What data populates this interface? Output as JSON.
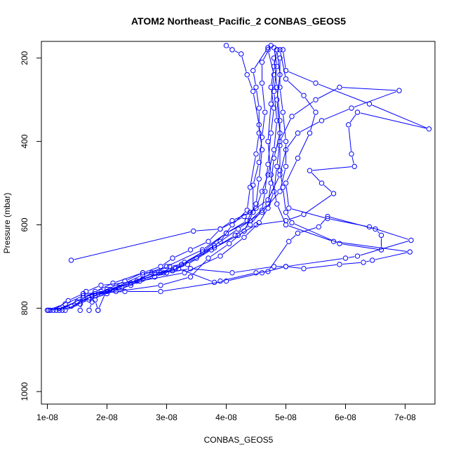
{
  "chart_data": {
    "type": "line",
    "title": "ATOM2 Northeast_Pacific_2 CONBAS_GEOS5",
    "xlabel": "CONBAS_GEOS5",
    "ylabel": "Pressure (mbar)",
    "xlim": [
      9e-09,
      7.5e-08
    ],
    "ylim": [
      1030,
      160
    ],
    "y_reversed": true,
    "x_ticks": [
      {
        "value": 1e-08,
        "label": "1e-08"
      },
      {
        "value": 2e-08,
        "label": "2e-08"
      },
      {
        "value": 3e-08,
        "label": "3e-08"
      },
      {
        "value": 4e-08,
        "label": "4e-08"
      },
      {
        "value": 5e-08,
        "label": "5e-08"
      },
      {
        "value": 6e-08,
        "label": "6e-08"
      },
      {
        "value": 7e-08,
        "label": "7e-08"
      }
    ],
    "y_ticks": [
      {
        "value": 200,
        "label": "200"
      },
      {
        "value": 400,
        "label": "400"
      },
      {
        "value": 600,
        "label": "600"
      },
      {
        "value": 800,
        "label": "800"
      },
      {
        "value": 1000,
        "label": "1000"
      }
    ],
    "grid": false,
    "color": "#0000ff",
    "series": [
      {
        "points": [
          [
            1.4e-08,
            685
          ],
          [
            3.45e-08,
            615
          ],
          [
            3.9e-08,
            610
          ],
          [
            4.3e-08,
            580
          ],
          [
            4.5e-08,
            560
          ],
          [
            4.6e-08,
            520
          ],
          [
            4.7e-08,
            480
          ],
          [
            4.8e-08,
            420
          ],
          [
            4.85e-08,
            350
          ],
          [
            4.8e-08,
            280
          ],
          [
            4.85e-08,
            220
          ],
          [
            4.8e-08,
            175
          ]
        ]
      },
      {
        "points": [
          [
            1e-08,
            805
          ],
          [
            1.3e-08,
            790
          ],
          [
            1.6e-08,
            770
          ],
          [
            2e-08,
            760
          ],
          [
            2.6e-08,
            720
          ],
          [
            3e-08,
            700
          ],
          [
            3.6e-08,
            660
          ],
          [
            4e-08,
            620
          ],
          [
            4.4e-08,
            590
          ],
          [
            4.7e-08,
            550
          ],
          [
            4.75e-08,
            500
          ],
          [
            4.8e-08,
            440
          ],
          [
            4.9e-08,
            380
          ],
          [
            4.85e-08,
            300
          ],
          [
            4.9e-08,
            240
          ],
          [
            4.85e-08,
            180
          ]
        ]
      },
      {
        "points": [
          [
            1.02e-08,
            805
          ],
          [
            1.2e-08,
            800
          ],
          [
            1.5e-08,
            785
          ],
          [
            1.8e-08,
            770
          ],
          [
            2.4e-08,
            740
          ],
          [
            2.9e-08,
            715
          ],
          [
            3.3e-08,
            690
          ],
          [
            3.8e-08,
            650
          ],
          [
            4.2e-08,
            610
          ],
          [
            4.6e-08,
            570
          ],
          [
            4.9e-08,
            520
          ],
          [
            5e-08,
            460
          ],
          [
            5e-08,
            400
          ],
          [
            4.95e-08,
            330
          ],
          [
            4.9e-08,
            270
          ],
          [
            4.9e-08,
            200
          ]
        ]
      },
      {
        "points": [
          [
            1.05e-08,
            805
          ],
          [
            1.4e-08,
            795
          ],
          [
            1.7e-08,
            775
          ],
          [
            2.2e-08,
            750
          ],
          [
            2.8e-08,
            715
          ],
          [
            3.1e-08,
            710
          ],
          [
            3.5e-08,
            680
          ],
          [
            3.9e-08,
            640
          ],
          [
            4.1e-08,
            600
          ],
          [
            4.35e-08,
            565
          ],
          [
            4.4e-08,
            510
          ],
          [
            4.5e-08,
            430
          ],
          [
            4.55e-08,
            380
          ],
          [
            4.55e-08,
            320
          ],
          [
            4.5e-08,
            270
          ],
          [
            4.45e-08,
            230
          ],
          [
            4.7e-08,
            175
          ]
        ]
      },
      {
        "points": [
          [
            1.1e-08,
            805
          ],
          [
            1.35e-08,
            782
          ],
          [
            1.6e-08,
            765
          ],
          [
            2.3e-08,
            760
          ],
          [
            2.9e-08,
            760
          ],
          [
            4e-08,
            735
          ],
          [
            4.6e-08,
            715
          ],
          [
            5e-08,
            700
          ],
          [
            5.3e-08,
            705
          ],
          [
            5.9e-08,
            695
          ],
          [
            6.3e-08,
            690
          ],
          [
            6.45e-08,
            685
          ],
          [
            7.08e-08,
            665
          ],
          [
            5.8e-08,
            640
          ],
          [
            5e-08,
            600
          ],
          [
            4.85e-08,
            550
          ],
          [
            4.75e-08,
            480
          ],
          [
            4.7e-08,
            400
          ],
          [
            4.75e-08,
            310
          ],
          [
            4.8e-08,
            240
          ],
          [
            4.7e-08,
            180
          ]
        ]
      },
      {
        "points": [
          [
            1.15e-08,
            805
          ],
          [
            1.5e-08,
            785
          ],
          [
            1.8e-08,
            760
          ],
          [
            2.1e-08,
            740
          ],
          [
            2.6e-08,
            715
          ],
          [
            3e-08,
            715
          ],
          [
            3.4e-08,
            705
          ],
          [
            4.1e-08,
            715
          ],
          [
            4.8e-08,
            700
          ],
          [
            5e-08,
            700
          ],
          [
            6e-08,
            680
          ],
          [
            6.2e-08,
            675
          ],
          [
            7.1e-08,
            637
          ],
          [
            6.4e-08,
            605
          ],
          [
            5.7e-08,
            585
          ],
          [
            5.05e-08,
            560
          ],
          [
            5e-08,
            500
          ],
          [
            5.2e-08,
            440
          ],
          [
            5.4e-08,
            380
          ],
          [
            5.5e-08,
            330
          ],
          [
            5.3e-08,
            290
          ],
          [
            5e-08,
            250
          ],
          [
            4.9e-08,
            180
          ]
        ]
      },
      {
        "points": [
          [
            1.2e-08,
            805
          ],
          [
            1.6e-08,
            775
          ],
          [
            1.9e-08,
            760
          ],
          [
            2.5e-08,
            735
          ],
          [
            2.95e-08,
            715
          ],
          [
            3.2e-08,
            705
          ],
          [
            3.8e-08,
            738
          ],
          [
            3.9e-08,
            735
          ],
          [
            4.5e-08,
            715
          ],
          [
            4.7e-08,
            712
          ],
          [
            5.05e-08,
            640
          ],
          [
            5.2e-08,
            620
          ],
          [
            5.55e-08,
            605
          ],
          [
            5.7e-08,
            580
          ],
          [
            6.5e-08,
            610
          ],
          [
            6.6e-08,
            625
          ],
          [
            6.6e-08,
            660
          ],
          [
            5.9e-08,
            645
          ],
          [
            5.1e-08,
            595
          ],
          [
            5e-08,
            570
          ],
          [
            4.95e-08,
            510
          ],
          [
            4.9e-08,
            470
          ],
          [
            4.9e-08,
            410
          ],
          [
            4.9e-08,
            350
          ],
          [
            4.85e-08,
            270
          ],
          [
            4.8e-08,
            200
          ]
        ]
      },
      {
        "points": [
          [
            1.25e-08,
            805
          ],
          [
            1.7e-08,
            780
          ],
          [
            2e-08,
            765
          ],
          [
            2.4e-08,
            745
          ],
          [
            2.75e-08,
            715
          ],
          [
            3.05e-08,
            700
          ],
          [
            3.25e-08,
            695
          ],
          [
            3.8e-08,
            655
          ],
          [
            4.2e-08,
            625
          ],
          [
            4.5e-08,
            600
          ],
          [
            5e-08,
            590
          ],
          [
            5.3e-08,
            575
          ],
          [
            5.8e-08,
            525
          ],
          [
            5.6e-08,
            500
          ],
          [
            5.4e-08,
            470
          ],
          [
            6.15e-08,
            460
          ],
          [
            6.1e-08,
            430
          ],
          [
            6.05e-08,
            360
          ],
          [
            6.2e-08,
            330
          ],
          [
            7.4e-08,
            370
          ],
          [
            6.4e-08,
            310
          ],
          [
            5.5e-08,
            260
          ],
          [
            5e-08,
            230
          ],
          [
            4.95e-08,
            180
          ]
        ]
      },
      {
        "points": [
          [
            1.3e-08,
            805
          ],
          [
            1.55e-08,
            790
          ],
          [
            1.75e-08,
            770
          ],
          [
            2.15e-08,
            760
          ],
          [
            2.9e-08,
            745
          ],
          [
            3.4e-08,
            725
          ],
          [
            3.7e-08,
            680
          ],
          [
            4.05e-08,
            645
          ],
          [
            4.3e-08,
            615
          ],
          [
            4.45e-08,
            570
          ],
          [
            4.45e-08,
            505
          ],
          [
            4.55e-08,
            450
          ],
          [
            4.6e-08,
            390
          ],
          [
            4.65e-08,
            330
          ],
          [
            4.6e-08,
            260
          ],
          [
            4.6e-08,
            210
          ],
          [
            4.75e-08,
            170
          ]
        ]
      },
      {
        "points": [
          [
            1.55e-08,
            805
          ],
          [
            1.6e-08,
            775
          ],
          [
            1.65e-08,
            760
          ],
          [
            1.9e-08,
            745
          ],
          [
            2.55e-08,
            735
          ],
          [
            3.3e-08,
            715
          ],
          [
            3.9e-08,
            675
          ],
          [
            4.3e-08,
            630
          ],
          [
            4.55e-08,
            595
          ],
          [
            4.7e-08,
            560
          ],
          [
            4.8e-08,
            520
          ],
          [
            4.85e-08,
            460
          ],
          [
            4.9e-08,
            400
          ],
          [
            5.1e-08,
            340
          ],
          [
            5.5e-08,
            300
          ],
          [
            5.9e-08,
            270
          ],
          [
            6.9e-08,
            278
          ],
          [
            6.1e-08,
            320
          ],
          [
            5.6e-08,
            350
          ],
          [
            5.2e-08,
            380
          ],
          [
            5e-08,
            420
          ],
          [
            4.9e-08,
            480
          ],
          [
            4.7e-08,
            540
          ],
          [
            4.4e-08,
            570
          ],
          [
            4.1e-08,
            590
          ],
          [
            3.9e-08,
            610
          ],
          [
            3.7e-08,
            640
          ],
          [
            3.4e-08,
            660
          ],
          [
            3.1e-08,
            680
          ],
          [
            2.9e-08,
            700
          ],
          [
            2.6e-08,
            715
          ],
          [
            2.3e-08,
            735
          ],
          [
            2e-08,
            755
          ],
          [
            1.85e-08,
            805
          ]
        ]
      },
      {
        "points": [
          [
            1.7e-08,
            805
          ],
          [
            1.75e-08,
            785
          ],
          [
            1.8e-08,
            765
          ],
          [
            2.05e-08,
            755
          ],
          [
            2.6e-08,
            730
          ],
          [
            3.15e-08,
            705
          ],
          [
            3.6e-08,
            665
          ],
          [
            4e-08,
            620
          ],
          [
            4.35e-08,
            590
          ],
          [
            4.5e-08,
            550
          ],
          [
            4.55e-08,
            490
          ],
          [
            4.6e-08,
            420
          ],
          [
            4.55e-08,
            360
          ],
          [
            4.45e-08,
            280
          ],
          [
            4.35e-08,
            240
          ],
          [
            4.25e-08,
            190
          ],
          [
            4.1e-08,
            180
          ],
          [
            4e-08,
            170
          ]
        ]
      },
      {
        "points": [
          [
            1.85e-08,
            805
          ],
          [
            1.8e-08,
            780
          ],
          [
            1.9e-08,
            765
          ],
          [
            2.25e-08,
            750
          ],
          [
            2.8e-08,
            725
          ],
          [
            3.35e-08,
            695
          ],
          [
            3.75e-08,
            660
          ],
          [
            4.15e-08,
            625
          ],
          [
            4.4e-08,
            600
          ],
          [
            4.6e-08,
            565
          ],
          [
            4.65e-08,
            520
          ],
          [
            4.7e-08,
            455
          ],
          [
            4.75e-08,
            380
          ],
          [
            4.8e-08,
            320
          ],
          [
            4.75e-08,
            270
          ],
          [
            4.8e-08,
            220
          ],
          [
            4.85e-08,
            180
          ]
        ]
      }
    ]
  }
}
